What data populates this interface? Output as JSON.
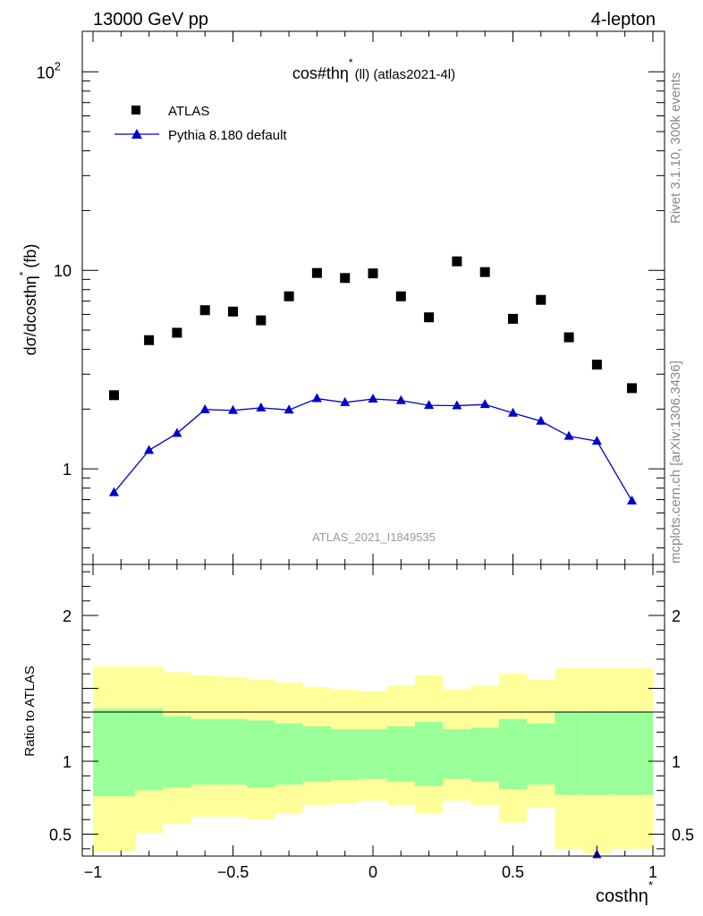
{
  "header": {
    "left": "13000 GeV pp",
    "right": "4-lepton",
    "side_top": "Rivet 3.1.10,  300k events",
    "side_bottom": "mcplots.cern.ch [arXiv:1306.3436]"
  },
  "colors": {
    "data": "#000000",
    "mc": "#0000cc",
    "band_inner": "#99ff99",
    "band_outer": "#ffff99"
  },
  "chart_data": [
    {
      "type": "scatter",
      "title": "cos#thη",
      "title_sup": "*",
      "title_suffix": "(ll) (atlas2021-4l)",
      "watermark": "ATLAS_2021_I1849535",
      "ylabel": "dσ/dcosthη",
      "ylabel_sup": "*",
      "ylabel_suffix": "(fb)",
      "yscale": "log",
      "xlim": [
        -1.0,
        1.0
      ],
      "ylim": [
        0.33,
        160
      ],
      "ytick_labels": [
        {
          "value": 1,
          "label": "1"
        },
        {
          "value": 10,
          "label": "10"
        },
        {
          "value": 100,
          "label": "10",
          "sup": "2"
        }
      ],
      "legend_position": "top-left",
      "series": [
        {
          "name": "ATLAS",
          "marker": "square",
          "x": [
            -0.925,
            -0.8,
            -0.7,
            -0.6,
            -0.5,
            -0.4,
            -0.3,
            -0.2,
            -0.1,
            0.0,
            0.1,
            0.2,
            0.3,
            0.4,
            0.5,
            0.6,
            0.7,
            0.8,
            0.925
          ],
          "y": [
            2.35,
            4.45,
            4.85,
            6.3,
            6.2,
            5.6,
            7.4,
            9.7,
            9.15,
            9.65,
            7.4,
            5.8,
            11.1,
            9.8,
            5.7,
            7.1,
            4.6,
            3.35,
            2.55
          ]
        },
        {
          "name": "Pythia 8.180 default",
          "marker": "triangle",
          "x": [
            -0.925,
            -0.8,
            -0.7,
            -0.6,
            -0.5,
            -0.4,
            -0.3,
            -0.2,
            -0.1,
            0.0,
            0.1,
            0.2,
            0.3,
            0.4,
            0.5,
            0.6,
            0.7,
            0.8,
            0.925
          ],
          "y": [
            0.76,
            1.24,
            1.51,
            1.99,
            1.97,
            2.03,
            1.98,
            2.26,
            2.16,
            2.25,
            2.21,
            2.09,
            2.08,
            2.11,
            1.91,
            1.74,
            1.46,
            1.38,
            0.69
          ]
        }
      ]
    },
    {
      "type": "area",
      "ylabel": "Ratio to ATLAS",
      "xlabel": "costhη",
      "xlabel_sup": "*",
      "xlim": [
        -1.0,
        1.0
      ],
      "ylim": [
        0.35,
        2.35
      ],
      "xticks": [
        {
          "value": -1,
          "label": "−1"
        },
        {
          "value": -0.5,
          "label": "−0.5"
        },
        {
          "value": 0,
          "label": "0"
        },
        {
          "value": 0.5,
          "label": "0.5"
        },
        {
          "value": 1,
          "label": "1"
        }
      ],
      "yticks": [
        {
          "value": 0.5,
          "label": "0.5"
        },
        {
          "value": 1,
          "label": "1"
        },
        {
          "value": 2,
          "label": "2"
        }
      ],
      "bins": [
        -1.0,
        -0.85,
        -0.75,
        -0.65,
        -0.55,
        -0.45,
        -0.35,
        -0.25,
        -0.15,
        -0.05,
        0.05,
        0.15,
        0.25,
        0.35,
        0.45,
        0.55,
        0.65,
        0.75,
        0.85,
        1.0
      ],
      "outer_band": {
        "low": [
          0.38,
          0.51,
          0.57,
          0.62,
          0.62,
          0.6,
          0.64,
          0.7,
          0.71,
          0.73,
          0.7,
          0.64,
          0.73,
          0.7,
          0.58,
          0.68,
          0.4,
          0.37,
          0.4
        ],
        "high": [
          1.65,
          1.65,
          1.61,
          1.59,
          1.58,
          1.56,
          1.54,
          1.51,
          1.49,
          1.48,
          1.52,
          1.59,
          1.49,
          1.52,
          1.6,
          1.56,
          1.64,
          1.64,
          1.64
        ]
      },
      "inner_band": {
        "low": [
          0.76,
          0.8,
          0.82,
          0.84,
          0.84,
          0.82,
          0.84,
          0.86,
          0.87,
          0.88,
          0.86,
          0.83,
          0.88,
          0.86,
          0.81,
          0.84,
          0.77,
          0.77,
          0.77
        ],
        "high": [
          1.36,
          1.36,
          1.31,
          1.29,
          1.29,
          1.28,
          1.26,
          1.24,
          1.22,
          1.22,
          1.24,
          1.27,
          1.22,
          1.23,
          1.29,
          1.26,
          1.34,
          1.34,
          1.34
        ]
      },
      "reference": 1,
      "series": [
        {
          "name": "Pythia 8.180 default",
          "x": [
            0.8
          ],
          "y": [
            0.36
          ]
        }
      ]
    }
  ]
}
